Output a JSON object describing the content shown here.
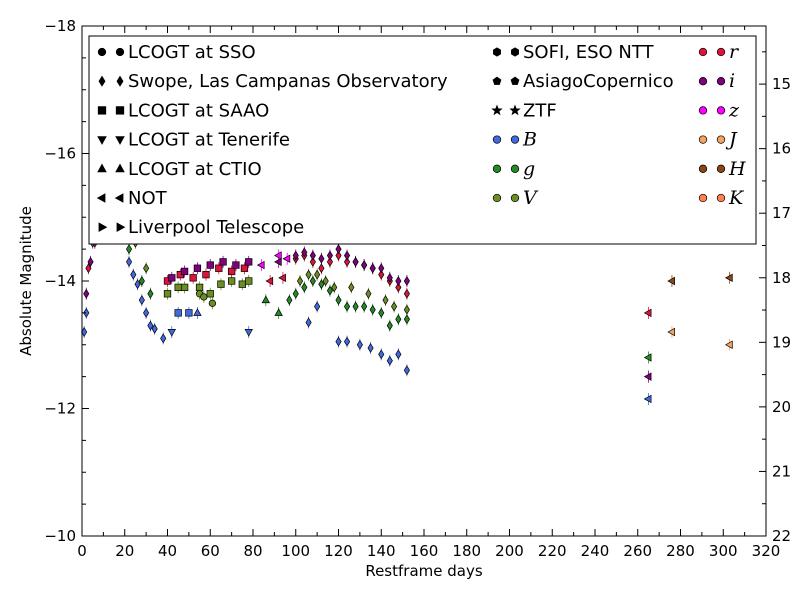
{
  "chart_data": {
    "type": "scatter",
    "xlabel": "Restframe days",
    "ylabel": "Absolute Magnitude",
    "xlim": [
      0,
      320
    ],
    "ylim": [
      -10,
      -18
    ],
    "y2lim": [
      22,
      14.1
    ],
    "x_ticks": [
      0,
      20,
      40,
      60,
      80,
      100,
      120,
      140,
      160,
      180,
      200,
      220,
      240,
      260,
      280,
      300,
      320
    ],
    "y_ticks": [
      -18,
      -16,
      -14,
      -12,
      -10
    ],
    "y2_ticks": [
      15,
      16,
      17,
      18,
      19,
      20,
      21,
      22
    ],
    "legend_position": "top",
    "telescopes": [
      {
        "label": "LCOGT at SSO",
        "marker": "circle"
      },
      {
        "label": "Swope, Las Campanas Observatory",
        "marker": "diamond"
      },
      {
        "label": "LCOGT at SAAO",
        "marker": "square"
      },
      {
        "label": "LCOGT at Tenerife",
        "marker": "triangle-down"
      },
      {
        "label": "LCOGT at CTIO",
        "marker": "triangle-up"
      },
      {
        "label": "NOT",
        "marker": "triangle-left"
      },
      {
        "label": "Liverpool Telescope",
        "marker": "triangle-right"
      },
      {
        "label": "SOFI, ESO NTT",
        "marker": "hexagon"
      },
      {
        "label": "AsiagoCopernico",
        "marker": "pentagon"
      },
      {
        "label": "ZTF",
        "marker": "star"
      }
    ],
    "filters": [
      {
        "label": "B",
        "color": "#4169e1"
      },
      {
        "label": "g",
        "color": "#228b22"
      },
      {
        "label": "V",
        "color": "#6b8e23"
      },
      {
        "label": "r",
        "color": "#dc143c"
      },
      {
        "label": "i",
        "color": "#800080"
      },
      {
        "label": "z",
        "color": "#ff00ff"
      },
      {
        "label": "J",
        "color": "#f4a460"
      },
      {
        "label": "H",
        "color": "#8b4513"
      },
      {
        "label": "K",
        "color": "#ff7f50"
      }
    ],
    "series": [
      {
        "filter": "B",
        "marker": "diamond",
        "points": [
          [
            1,
            -13.2
          ],
          [
            2,
            -13.5
          ],
          [
            5,
            -14.6
          ],
          [
            22,
            -14.3
          ],
          [
            24,
            -14.1
          ],
          [
            26,
            -13.95
          ],
          [
            28,
            -13.7
          ],
          [
            30,
            -13.5
          ],
          [
            32,
            -13.3
          ],
          [
            34,
            -13.25
          ],
          [
            38,
            -13.1
          ],
          [
            106,
            -13.35
          ],
          [
            110,
            -13.6
          ],
          [
            120,
            -13.05
          ],
          [
            124,
            -13.05
          ],
          [
            130,
            -13.0
          ],
          [
            135,
            -12.95
          ],
          [
            140,
            -12.85
          ],
          [
            144,
            -12.75
          ],
          [
            148,
            -12.85
          ],
          [
            152,
            -12.6
          ]
        ]
      },
      {
        "filter": "B",
        "marker": "triangle-down",
        "points": [
          [
            42,
            -13.2
          ],
          [
            78,
            -13.2
          ]
        ]
      },
      {
        "filter": "B",
        "marker": "square",
        "points": [
          [
            45,
            -13.5
          ],
          [
            50,
            -13.5
          ]
        ]
      },
      {
        "filter": "B",
        "marker": "triangle-up",
        "points": [
          [
            54,
            -13.5
          ]
        ]
      },
      {
        "filter": "B",
        "marker": "triangle-left",
        "points": [
          [
            265,
            -12.15
          ]
        ]
      },
      {
        "filter": "g",
        "marker": "diamond",
        "points": [
          [
            22,
            -14.5
          ],
          [
            28,
            -14.0
          ],
          [
            32,
            -13.8
          ],
          [
            97,
            -13.7
          ],
          [
            100,
            -13.8
          ],
          [
            104,
            -13.9
          ],
          [
            108,
            -14.0
          ],
          [
            112,
            -13.95
          ],
          [
            116,
            -13.85
          ],
          [
            120,
            -13.7
          ],
          [
            124,
            -13.6
          ],
          [
            128,
            -13.6
          ],
          [
            132,
            -13.6
          ],
          [
            136,
            -13.55
          ],
          [
            140,
            -13.5
          ],
          [
            144,
            -13.3
          ],
          [
            148,
            -13.4
          ],
          [
            152,
            -13.4
          ]
        ]
      },
      {
        "filter": "g",
        "marker": "triangle-up",
        "points": [
          [
            86,
            -13.7
          ],
          [
            92,
            -13.5
          ]
        ]
      },
      {
        "filter": "g",
        "marker": "triangle-left",
        "points": [
          [
            265,
            -12.8
          ]
        ]
      },
      {
        "filter": "V",
        "marker": "diamond",
        "points": [
          [
            25,
            -14.6
          ],
          [
            30,
            -14.2
          ],
          [
            102,
            -14.0
          ],
          [
            106,
            -14.1
          ],
          [
            110,
            -14.1
          ],
          [
            114,
            -14.0
          ],
          [
            118,
            -13.9
          ],
          [
            126,
            -13.9
          ],
          [
            134,
            -13.8
          ],
          [
            142,
            -13.7
          ],
          [
            146,
            -13.6
          ],
          [
            152,
            -13.55
          ]
        ]
      },
      {
        "filter": "V",
        "marker": "square",
        "points": [
          [
            40,
            -13.8
          ],
          [
            45,
            -13.9
          ],
          [
            48,
            -13.9
          ],
          [
            55,
            -13.9
          ],
          [
            60,
            -13.8
          ],
          [
            65,
            -13.95
          ],
          [
            70,
            -14.0
          ],
          [
            75,
            -13.95
          ],
          [
            78,
            -14.0
          ]
        ]
      },
      {
        "filter": "V",
        "marker": "circle",
        "points": [
          [
            55,
            -13.8
          ],
          [
            57,
            -13.75
          ],
          [
            61,
            -13.65
          ]
        ]
      },
      {
        "filter": "r",
        "marker": "diamond",
        "points": [
          [
            3,
            -14.2
          ],
          [
            6,
            -14.6
          ],
          [
            100,
            -14.35
          ],
          [
            104,
            -14.4
          ],
          [
            108,
            -14.3
          ],
          [
            112,
            -14.2
          ],
          [
            116,
            -14.3
          ],
          [
            120,
            -14.4
          ],
          [
            124,
            -14.3
          ],
          [
            128,
            -14.3
          ],
          [
            132,
            -14.25
          ],
          [
            136,
            -14.2
          ],
          [
            140,
            -14.1
          ],
          [
            144,
            -14.0
          ],
          [
            148,
            -13.9
          ],
          [
            152,
            -13.8
          ]
        ]
      },
      {
        "filter": "r",
        "marker": "square",
        "points": [
          [
            40,
            -14.0
          ],
          [
            46,
            -14.1
          ],
          [
            52,
            -14.05
          ],
          [
            58,
            -14.1
          ],
          [
            64,
            -14.2
          ],
          [
            70,
            -14.15
          ],
          [
            76,
            -14.2
          ]
        ]
      },
      {
        "filter": "r",
        "marker": "triangle-left",
        "points": [
          [
            265,
            -13.5
          ],
          [
            88,
            -14.0
          ],
          [
            94,
            -14.05
          ]
        ]
      },
      {
        "filter": "i",
        "marker": "diamond",
        "points": [
          [
            2,
            -13.8
          ],
          [
            4,
            -14.3
          ],
          [
            100,
            -14.4
          ],
          [
            104,
            -14.45
          ],
          [
            108,
            -14.4
          ],
          [
            112,
            -14.35
          ],
          [
            116,
            -14.4
          ],
          [
            120,
            -14.5
          ],
          [
            124,
            -14.4
          ],
          [
            128,
            -14.3
          ],
          [
            132,
            -14.25
          ],
          [
            136,
            -14.2
          ],
          [
            140,
            -14.2
          ],
          [
            144,
            -14.05
          ],
          [
            148,
            -14.0
          ],
          [
            152,
            -14.0
          ]
        ]
      },
      {
        "filter": "i",
        "marker": "square",
        "points": [
          [
            42,
            -14.05
          ],
          [
            48,
            -14.15
          ],
          [
            54,
            -14.2
          ],
          [
            60,
            -14.25
          ],
          [
            66,
            -14.3
          ],
          [
            72,
            -14.25
          ],
          [
            78,
            -14.3
          ]
        ]
      },
      {
        "filter": "i",
        "marker": "triangle-left",
        "points": [
          [
            265,
            -12.5
          ],
          [
            92,
            -14.3
          ]
        ]
      },
      {
        "filter": "z",
        "marker": "triangle-left",
        "points": [
          [
            84,
            -14.25
          ],
          [
            92,
            -14.4
          ],
          [
            96,
            -14.35
          ]
        ]
      },
      {
        "filter": "J",
        "marker": "triangle-left",
        "points": [
          [
            276,
            -13.2
          ],
          [
            303,
            -13.0
          ]
        ]
      },
      {
        "filter": "H",
        "marker": "triangle-left",
        "points": [
          [
            276,
            -14.0
          ],
          [
            303,
            -14.05
          ]
        ]
      }
    ]
  }
}
